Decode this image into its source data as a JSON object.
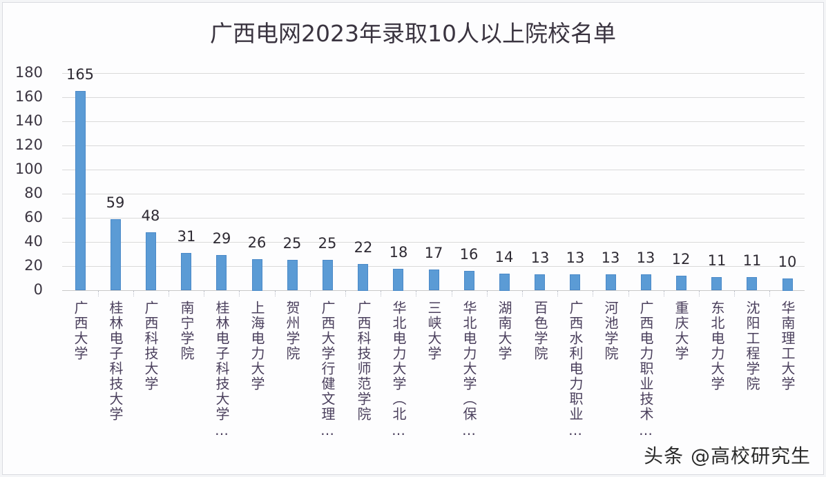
{
  "chart_data": {
    "type": "bar",
    "title": "广西电网2023年录取10人以上院校名单",
    "xlabel": "",
    "ylabel": "",
    "ylim": [
      0,
      180
    ],
    "yticks": [
      0,
      20,
      40,
      60,
      80,
      100,
      120,
      140,
      160,
      180
    ],
    "grid": true,
    "legend": null,
    "data_labels": true,
    "bar_color": "#5b9bd5",
    "categories": [
      "广西大学",
      "桂林电子科技大学",
      "广西科技大学",
      "南宁学院",
      "桂林电子科技大学…",
      "上海电力大学",
      "贺州学院",
      "广西大学行健文理…",
      "广西科技师范学院",
      "华北电力大学（北…",
      "三峡大学",
      "华北电力大学（保…",
      "湖南大学",
      "百色学院",
      "广西水利电力职业…",
      "河池学院",
      "广西电力职业技术…",
      "重庆大学",
      "东北电力大学",
      "沈阳工程学院",
      "华南理工大学"
    ],
    "values": [
      165,
      59,
      48,
      31,
      29,
      26,
      25,
      25,
      22,
      18,
      17,
      16,
      14,
      13,
      13,
      13,
      13,
      12,
      11,
      11,
      10
    ]
  },
  "watermark": "头条 @高校研究生"
}
